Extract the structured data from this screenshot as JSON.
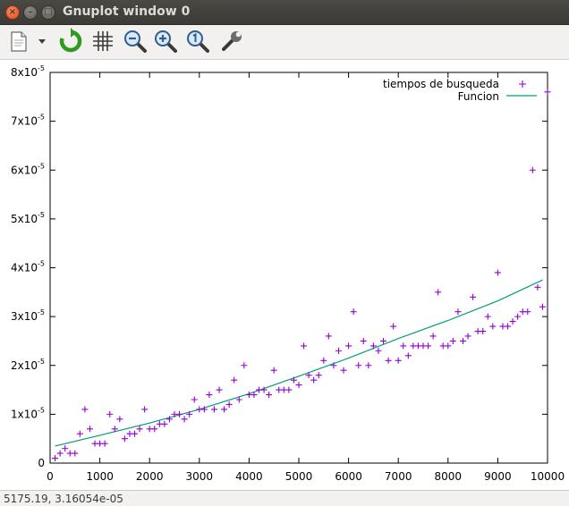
{
  "window": {
    "title": "Gnuplot window 0",
    "close_glyph": "×",
    "min_glyph": "–",
    "max_glyph": "□"
  },
  "toolbar": {
    "buttons": [
      {
        "icon": "copy-to-clipboard-icon"
      },
      {
        "icon": "dropdown-arrow-icon"
      },
      {
        "icon": "replot-icon"
      },
      {
        "icon": "grid-icon"
      },
      {
        "icon": "zoom-out-icon"
      },
      {
        "icon": "zoom-in-icon"
      },
      {
        "icon": "zoom-reset-icon"
      },
      {
        "icon": "settings-wrench-icon"
      }
    ]
  },
  "status": {
    "text": "5175.19,  3.16054e-05"
  },
  "colors": {
    "points": "#9400d3",
    "fit_line": "#009e73",
    "axis": "#000000"
  },
  "chart_data": {
    "type": "scatter",
    "title": "",
    "xlabel": "",
    "ylabel": "",
    "xlim": [
      0,
      10000
    ],
    "ylim": [
      0,
      8e-05
    ],
    "grid": false,
    "legend_position": "top-right",
    "x_ticks": [
      {
        "v": 0,
        "label": "0"
      },
      {
        "v": 1000,
        "label": "1000"
      },
      {
        "v": 2000,
        "label": "2000"
      },
      {
        "v": 3000,
        "label": "3000"
      },
      {
        "v": 4000,
        "label": "4000"
      },
      {
        "v": 5000,
        "label": "5000"
      },
      {
        "v": 6000,
        "label": "6000"
      },
      {
        "v": 7000,
        "label": "7000"
      },
      {
        "v": 8000,
        "label": "8000"
      },
      {
        "v": 9000,
        "label": "9000"
      },
      {
        "v": 10000,
        "label": "10000"
      }
    ],
    "y_ticks": [
      {
        "v": 0,
        "mant": "0",
        "exp": ""
      },
      {
        "v": 1e-05,
        "mant": "1x10",
        "exp": "-5"
      },
      {
        "v": 2e-05,
        "mant": "2x10",
        "exp": "-5"
      },
      {
        "v": 3e-05,
        "mant": "3x10",
        "exp": "-5"
      },
      {
        "v": 4e-05,
        "mant": "4x10",
        "exp": "-5"
      },
      {
        "v": 5e-05,
        "mant": "5x10",
        "exp": "-5"
      },
      {
        "v": 6e-05,
        "mant": "6x10",
        "exp": "-5"
      },
      {
        "v": 7e-05,
        "mant": "7x10",
        "exp": "-5"
      },
      {
        "v": 8e-05,
        "mant": "8x10",
        "exp": "-5"
      }
    ],
    "series": [
      {
        "name": "tiempos de busqueda",
        "style": "points",
        "x": [
          100,
          200,
          300,
          400,
          500,
          600,
          700,
          800,
          900,
          1000,
          1100,
          1200,
          1300,
          1400,
          1500,
          1600,
          1700,
          1800,
          1900,
          2000,
          2100,
          2200,
          2300,
          2400,
          2500,
          2600,
          2700,
          2800,
          2900,
          3000,
          3100,
          3200,
          3300,
          3400,
          3500,
          3600,
          3700,
          3800,
          3900,
          4000,
          4100,
          4200,
          4300,
          4400,
          4500,
          4600,
          4700,
          4800,
          4900,
          5000,
          5100,
          5200,
          5300,
          5400,
          5500,
          5600,
          5700,
          5800,
          5900,
          6000,
          6100,
          6200,
          6300,
          6400,
          6500,
          6600,
          6700,
          6800,
          6900,
          7000,
          7100,
          7200,
          7300,
          7400,
          7500,
          7600,
          7700,
          7800,
          7900,
          8000,
          8100,
          8200,
          8300,
          8400,
          8500,
          8600,
          8700,
          8800,
          8900,
          9000,
          9100,
          9200,
          9300,
          9400,
          9500,
          9600,
          9700,
          9800,
          9900,
          10000
        ],
        "y": [
          1e-06,
          2e-06,
          3e-06,
          2e-06,
          2e-06,
          6e-06,
          1.1e-05,
          7e-06,
          4e-06,
          4e-06,
          4e-06,
          1e-05,
          7e-06,
          9e-06,
          5e-06,
          6e-06,
          6e-06,
          7e-06,
          1.1e-05,
          7e-06,
          7e-06,
          8e-06,
          8e-06,
          9e-06,
          1e-05,
          1e-05,
          9e-06,
          1e-05,
          1.3e-05,
          1.1e-05,
          1.1e-05,
          1.4e-05,
          1.1e-05,
          1.5e-05,
          1.1e-05,
          1.2e-05,
          1.7e-05,
          1.3e-05,
          2e-05,
          1.4e-05,
          1.4e-05,
          1.5e-05,
          1.5e-05,
          1.4e-05,
          1.9e-05,
          1.5e-05,
          1.5e-05,
          1.5e-05,
          1.7e-05,
          1.6e-05,
          2.4e-05,
          1.8e-05,
          1.7e-05,
          1.8e-05,
          2.1e-05,
          2.6e-05,
          2e-05,
          2.3e-05,
          1.9e-05,
          2.4e-05,
          3.1e-05,
          2e-05,
          2.5e-05,
          2e-05,
          2.4e-05,
          2.3e-05,
          2.5e-05,
          2.1e-05,
          2.8e-05,
          2.1e-05,
          2.4e-05,
          2.2e-05,
          2.4e-05,
          2.4e-05,
          2.4e-05,
          2.4e-05,
          2.6e-05,
          3.5e-05,
          2.4e-05,
          2.4e-05,
          2.5e-05,
          3.1e-05,
          2.5e-05,
          2.6e-05,
          3.4e-05,
          2.7e-05,
          2.7e-05,
          3e-05,
          2.8e-05,
          3.9e-05,
          2.8e-05,
          2.8e-05,
          2.9e-05,
          3e-05,
          3.1e-05,
          3.1e-05,
          6e-05,
          3.6e-05,
          3.2e-05,
          7.6e-05
        ]
      },
      {
        "name": "Funcion",
        "style": "line",
        "x": [
          100,
          1000,
          2000,
          3000,
          4000,
          5000,
          6000,
          7000,
          8000,
          9000,
          9900
        ],
        "y": [
          3.5e-06,
          5.7e-06,
          8.2e-06,
          1.1e-05,
          1.42e-05,
          1.78e-05,
          2.15e-05,
          2.55e-05,
          2.92e-05,
          3.32e-05,
          3.75e-05
        ]
      }
    ]
  }
}
